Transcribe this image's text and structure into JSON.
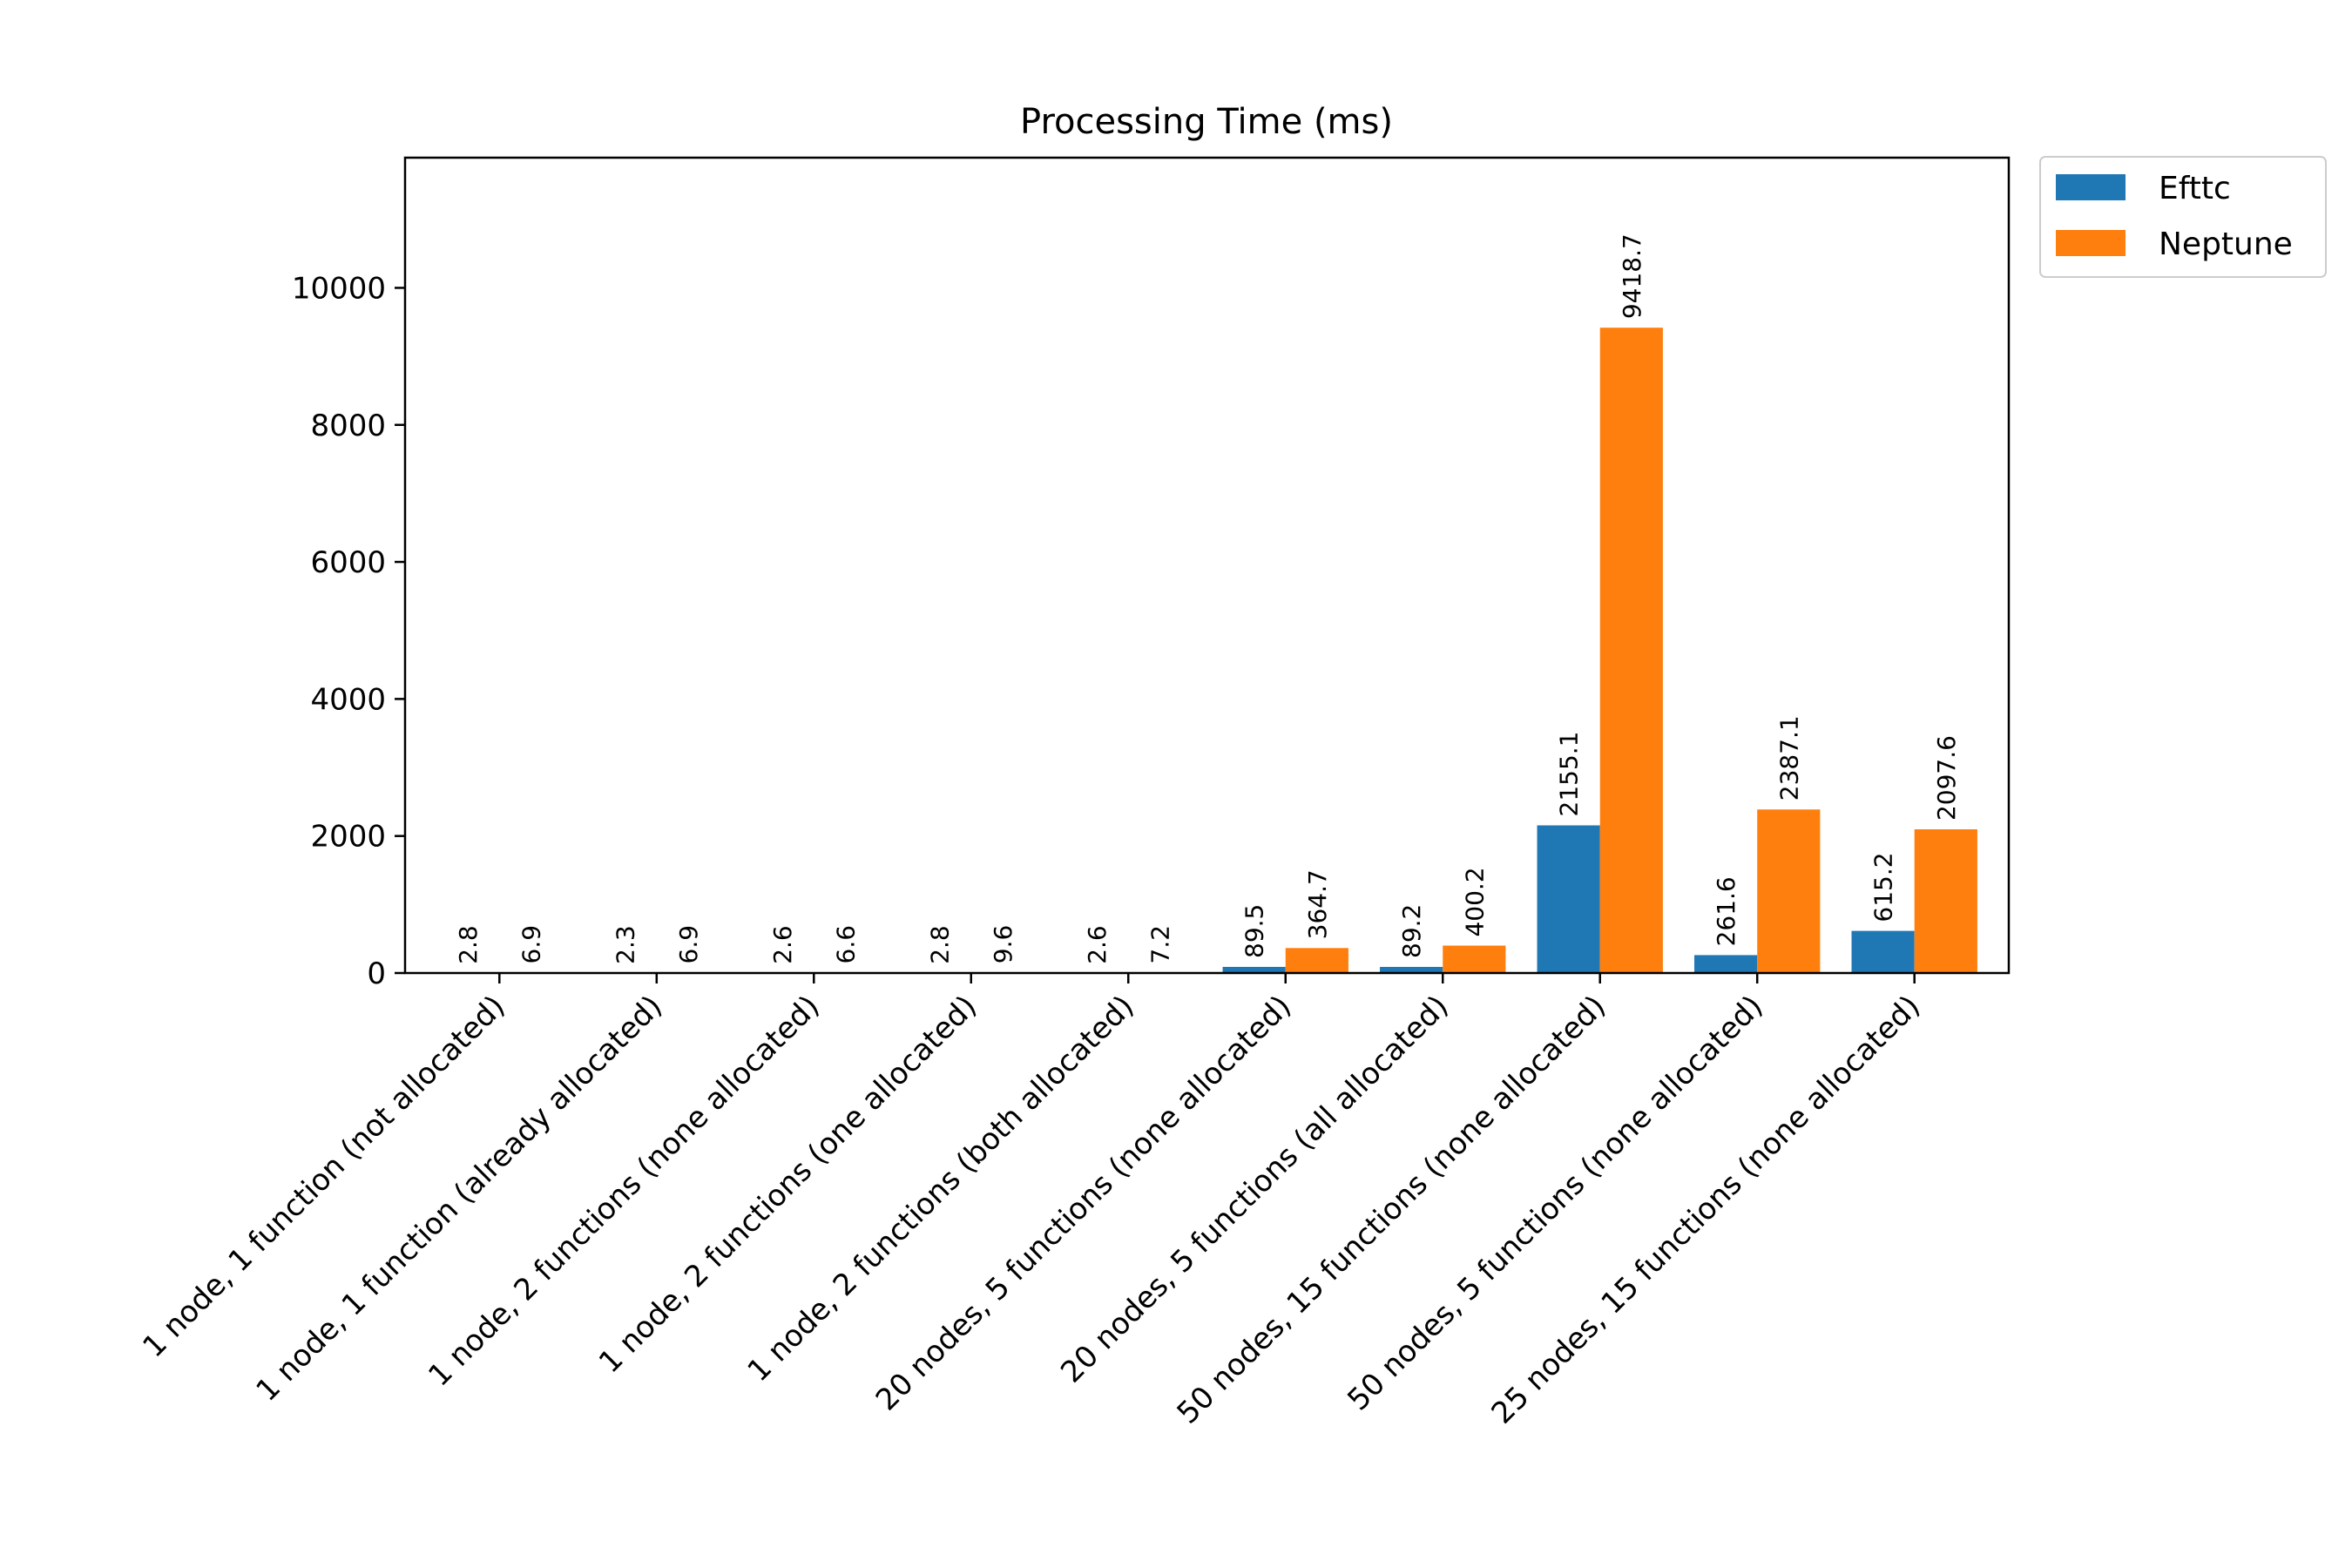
{
  "chart_data": {
    "type": "bar",
    "title": "Processing Time (ms)",
    "xlabel": "",
    "ylabel": "",
    "ylim": [
      0,
      11900
    ],
    "yticks": [
      0,
      2000,
      4000,
      6000,
      8000,
      10000
    ],
    "grid": false,
    "legend_position": "outside-top-right",
    "categories": [
      "1 node, 1 function (not allocated)",
      "1 node, 1 function (already allocated)",
      "1 node, 2 functions (none allocated)",
      "1 node, 2 functions (one allocated)",
      "1 node, 2 functions (both allocated)",
      "20 nodes, 5 functions (none allocated)",
      "20 nodes, 5 functions (all allocated)",
      "50 nodes, 15 functions (none allocated)",
      "50 nodes, 5 functions (none allocated)",
      "25 nodes, 15 functions (none allocated)"
    ],
    "series": [
      {
        "name": "Efttc",
        "color": "#1f77b4",
        "values": [
          2.8,
          2.3,
          2.6,
          2.8,
          2.6,
          89.5,
          89.2,
          2155.1,
          261.6,
          615.2
        ],
        "labels": [
          "2.8",
          "2.3",
          "2.6",
          "2.8",
          "2.6",
          "89.5",
          "89.2",
          "2155.1",
          "261.6",
          "615.2"
        ]
      },
      {
        "name": "Neptune",
        "color": "#ff7f0e",
        "values": [
          6.9,
          6.9,
          6.6,
          9.6,
          7.2,
          364.7,
          400.2,
          9418.7,
          2387.1,
          2097.6
        ],
        "labels": [
          "6.9",
          "6.9",
          "6.6",
          "9.6",
          "7.2",
          "364.7",
          "400.2",
          "9418.7",
          "2387.1",
          "2097.6"
        ]
      }
    ]
  }
}
